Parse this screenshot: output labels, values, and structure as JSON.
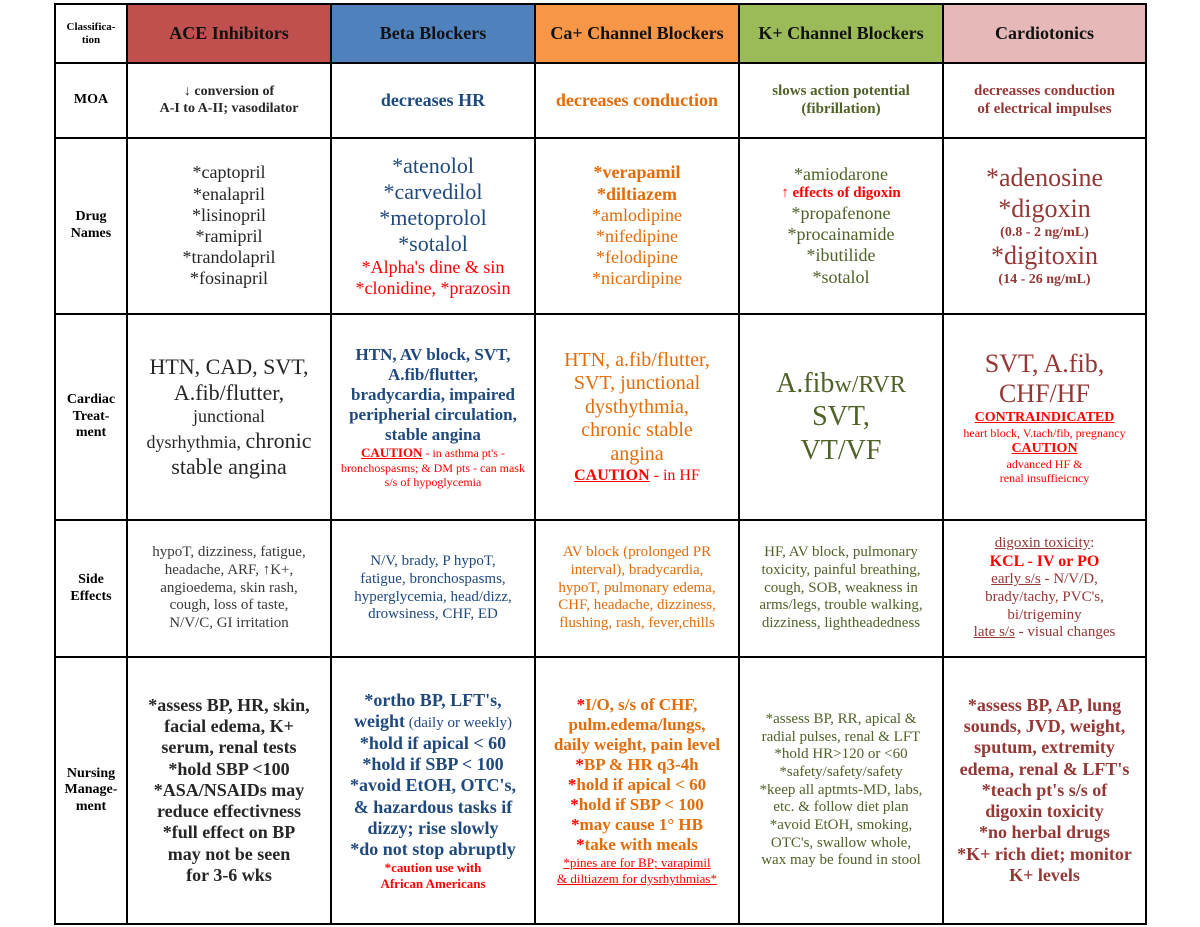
{
  "header": {
    "corner": "Classifica-tion",
    "ace": "ACE Inhibitors",
    "beta": "Beta Blockers",
    "ca": "Ca+ Channel Blockers",
    "k": "K+ Channel Blockers",
    "card": "Cardiotonics"
  },
  "row_labels": {
    "moa": "MOA",
    "drugs": "Drug Names",
    "cardiac": "Cardiac Treat-ment",
    "side": "Side Effects",
    "nursing": "Nursing Manage-ment"
  },
  "moa": {
    "ace": [
      "↓ conversion of",
      "A-I to A-II; vasodilator"
    ],
    "beta": "decreases HR",
    "ca": "decreases conduction",
    "k": [
      "slows action potential",
      "(fibrillation)"
    ],
    "card": [
      "decreasses conduction",
      "of electrical impulses"
    ]
  },
  "drugs": {
    "ace": [
      "*captopril",
      "*enalapril",
      "*lisinopril",
      "*ramipril",
      "*trandolapril",
      "*fosinapril"
    ],
    "beta": [
      "*atenolol",
      "*carvedilol",
      "*metoprolol",
      "*sotalol"
    ],
    "beta_red": [
      "*Alpha's dine & sin",
      "*clonidine, *prazosin"
    ],
    "ca_bold": [
      "*verapamil",
      "*diltiazem"
    ],
    "ca": [
      "*amlodipine",
      "*nifedipine",
      "*felodipine",
      "*nicardipine"
    ],
    "k1": "*amiodarone",
    "k_red": "↑ effects of digoxin",
    "k2": [
      "*propafenone",
      "*procainamide",
      "*ibutilide",
      "*sotalol"
    ],
    "card": [
      {
        "name": "*adenosine",
        "range": ""
      },
      {
        "name": "*digoxin",
        "range": "(0.8 - 2 ng/mL)"
      },
      {
        "name": "*digitoxin",
        "range": "(14 - 26 ng/mL)"
      }
    ]
  },
  "cardiac": {
    "ace": [
      "HTN, CAD, SVT,",
      "A.fib/flutter,"
    ],
    "ace_small": "junctional",
    "ace_mixed": {
      "a": "dysrhythmia, ",
      "b": "chronic"
    },
    "ace_last": "stable angina",
    "beta": [
      "HTN, AV block, SVT,",
      "A.fib/flutter,",
      "bradycardia, impaired",
      "peripherial circulation,",
      "stable angina"
    ],
    "beta_caution_word": "CAUTION",
    "beta_caution_text": " - in asthma pt's - bronchospasms; & DM pts - can mask s/s of hypoglycemia",
    "ca": [
      "HTN, a.fib/flutter,",
      "SVT, junctional",
      "dysthythmia,",
      "chronic stable",
      "angina"
    ],
    "ca_caution_word": "CAUTION",
    "ca_caution_text": " - in HF",
    "k": {
      "a": "A.fib",
      "w": "w/RVR",
      "l2": "SVT,",
      "l3": "VT/VF"
    },
    "card_main": [
      "SVT, A.fib,",
      "CHF/HF"
    ],
    "card_contra_word": "CONTRAINDICATED",
    "card_contra_text": "heart block, V.tach/fib, pregnancy",
    "card_caution_word": "CAUTION",
    "card_caution_text": [
      "advanced HF &",
      "renal insuffieicncy"
    ]
  },
  "side": {
    "ace": [
      "hypoT, dizziness, fatigue,",
      "headache, ARF, ↑K+,",
      "angioedema, skin rash,",
      "cough, loss of taste,",
      "N/V/C, GI irritation"
    ],
    "beta": [
      "N/V,  brady, P hypoT,",
      "fatigue, bronchospasms,",
      "hyperglycemia, head/dizz,",
      "drowsiness, CHF, ED"
    ],
    "ca": [
      "AV block (prolonged PR",
      "interval), bradycardia,",
      "hypoT, pulmonary edema,",
      "CHF, headache, dizziness,",
      "flushing, rash, fever,chills"
    ],
    "k": [
      "HF, AV block, pulmonary",
      "toxicity, painful breathing,",
      "cough, SOB, weakness in",
      "arms/legs, trouble walking,",
      "dizziness, lightheadedness"
    ],
    "card_title": "digoxin toxicity",
    "card_colon": ":",
    "card_kcl": "KCL - IV or PO",
    "card_early_word": "early s/s",
    "card_early_text": " - N/V/D,",
    "card_mid": [
      "brady/tachy, PVC's,",
      "bi/trigeminy"
    ],
    "card_late_word": "late s/s",
    "card_late_text": " - visual changes"
  },
  "nursing": {
    "ace": [
      "*assess BP, HR, skin,",
      "facial edema, K+",
      "serum, renal tests",
      "*hold SBP <100",
      "*ASA/NSAIDs may",
      "reduce effectivness",
      "*full effect on BP",
      "may not be seen",
      "for 3-6 wks"
    ],
    "beta_l1": "*ortho BP, LFT's,",
    "beta_weight": "weight",
    "beta_weight_note": " (daily or weekly)",
    "beta_rest": [
      "*hold if apical < 60",
      "*hold if SBP < 100",
      "*avoid EtOH, OTC's,",
      "& hazardous tasks if",
      "dizzy; rise slowly",
      "*do not stop abruptly"
    ],
    "beta_red": [
      "*caution use with",
      "African Americans"
    ],
    "ca_star": "*",
    "ca_l1": "I/O, s/s of CHF,",
    "ca_rest": [
      "pulm.edema/lungs,",
      "daily weight, pain level"
    ],
    "ca_star_items": [
      "BP & HR q3-4h",
      "hold if apical < 60",
      "hold if SBP < 100",
      "may cause 1° HB",
      "take with meals"
    ],
    "ca_note": [
      "*pines are for BP; varapimil",
      "& diltiazem for dysrhythmias*"
    ],
    "k": [
      "*assess BP, RR, apical &",
      "radial pulses, renal & LFT",
      "*hold HR>120 or <60",
      "*safety/safety/safety",
      "*keep all aptmts-MD, labs,",
      "etc. & follow diet plan",
      "*avoid EtOH, smoking,",
      "OTC's, swallow whole,",
      "wax may be found in stool"
    ],
    "card": [
      "*assess BP, AP, lung",
      "sounds, JVD, weight,",
      "sputum, extremity",
      "edema, renal & LFT's",
      "*teach pt's s/s of",
      "digoxin toxicity",
      "*no herbal drugs",
      "*K+ rich diet; monitor",
      "K+ levels"
    ]
  },
  "colors": {
    "ace_header": "#c0504d",
    "beta_header": "#4f81bd",
    "ca_header": "#f79646",
    "k_header": "#9bbb59",
    "card_header": "#e6b9b8",
    "beta_text": "#1f497d",
    "ca_text": "#e36c09",
    "k_text": "#4f6228",
    "card_text": "#953735",
    "alert_red": "#ff0000"
  }
}
